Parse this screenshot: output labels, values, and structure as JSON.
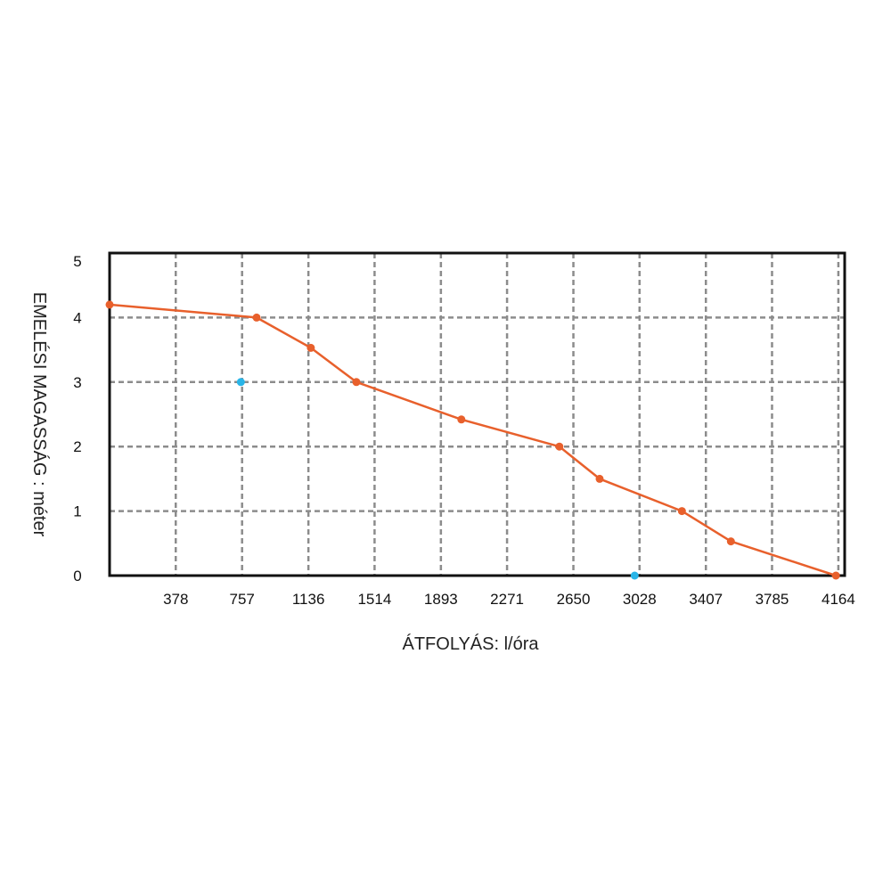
{
  "chart_data": {
    "type": "line",
    "title": "",
    "xlabel": "ÁTFOLYÁS: l/óra",
    "ylabel": "EMELÉSI MAGASSÁG : méter",
    "xlim": [
      0,
      4200
    ],
    "ylim": [
      0,
      5
    ],
    "x_ticks": [
      378,
      757,
      1136,
      1514,
      1893,
      2271,
      2650,
      3028,
      3407,
      3785,
      4164
    ],
    "x_tick_labels": [
      "378",
      "757",
      "1136",
      "1514",
      "1893",
      "2271",
      "2650",
      "3028",
      "3407",
      "3785",
      "4164"
    ],
    "y_ticks": [
      0,
      1,
      2,
      3,
      4,
      5
    ],
    "y_tick_labels": [
      "0",
      "1",
      "2",
      "3",
      "4",
      "5"
    ],
    "grid": true,
    "series": [
      {
        "color": "#e8602c",
        "points": [
          {
            "x": 0,
            "y": 4.2
          },
          {
            "x": 840,
            "y": 4.0
          },
          {
            "x": 1150,
            "y": 3.53
          },
          {
            "x": 1410,
            "y": 3.0
          },
          {
            "x": 2010,
            "y": 2.42
          },
          {
            "x": 2570,
            "y": 2.0
          },
          {
            "x": 2800,
            "y": 1.5
          },
          {
            "x": 3270,
            "y": 1.0
          },
          {
            "x": 3550,
            "y": 0.53
          },
          {
            "x": 4150,
            "y": 0.0
          }
        ]
      },
      {
        "color": "#29b5e8",
        "points": [
          {
            "x": 750,
            "y": 3.0
          },
          {
            "x": 3000,
            "y": 0.0
          }
        ]
      }
    ]
  }
}
